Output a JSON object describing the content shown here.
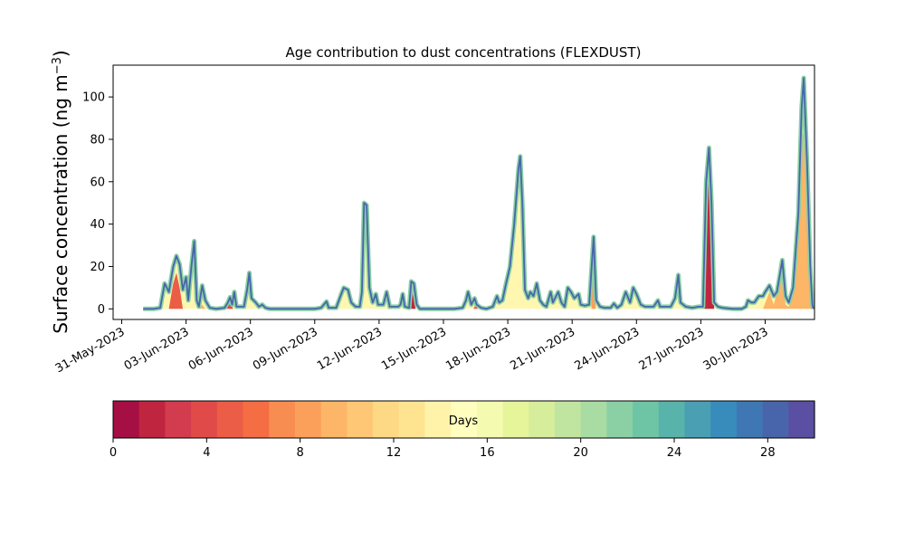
{
  "chart_data": {
    "type": "area",
    "title": "Age contribution to dust concentrations (FLEXDUST)",
    "ylabel_main": "Surface concentration (ng m",
    "ylabel_sup": "−3",
    "ylabel_close": ")",
    "xlabel": "",
    "ylim": [
      -5,
      115
    ],
    "y_ticks": [
      0,
      20,
      40,
      60,
      80,
      100
    ],
    "x_ticks": [
      {
        "day": 0,
        "label": "31-May-2023"
      },
      {
        "day": 3,
        "label": "03-Jun-2023"
      },
      {
        "day": 6,
        "label": "06-Jun-2023"
      },
      {
        "day": 9,
        "label": "09-Jun-2023"
      },
      {
        "day": 12,
        "label": "12-Jun-2023"
      },
      {
        "day": 15,
        "label": "15-Jun-2023"
      },
      {
        "day": 18,
        "label": "18-Jun-2023"
      },
      {
        "day": 21,
        "label": "21-Jun-2023"
      },
      {
        "day": 24,
        "label": "24-Jun-2023"
      },
      {
        "day": 27,
        "label": "27-Jun-2023"
      },
      {
        "day": 30,
        "label": "30-Jun-2023"
      }
    ],
    "xlim_days": [
      -0.4,
      32.3
    ],
    "total": [
      [
        1.0,
        0
      ],
      [
        1.5,
        0
      ],
      [
        1.8,
        0.5
      ],
      [
        2.0,
        12
      ],
      [
        2.2,
        8
      ],
      [
        2.4,
        20
      ],
      [
        2.55,
        25
      ],
      [
        2.7,
        21
      ],
      [
        2.85,
        9
      ],
      [
        3.0,
        15
      ],
      [
        3.1,
        4
      ],
      [
        3.25,
        20
      ],
      [
        3.38,
        32
      ],
      [
        3.5,
        4
      ],
      [
        3.6,
        1
      ],
      [
        3.75,
        11
      ],
      [
        3.9,
        4
      ],
      [
        4.1,
        0.5
      ],
      [
        4.4,
        0
      ],
      [
        4.8,
        0.5
      ],
      [
        4.95,
        3
      ],
      [
        5.05,
        5.5
      ],
      [
        5.15,
        2
      ],
      [
        5.25,
        8
      ],
      [
        5.35,
        1
      ],
      [
        5.7,
        1
      ],
      [
        5.85,
        9
      ],
      [
        5.95,
        17
      ],
      [
        6.05,
        5
      ],
      [
        6.25,
        3
      ],
      [
        6.4,
        1
      ],
      [
        6.55,
        2
      ],
      [
        6.7,
        0.5
      ],
      [
        6.9,
        0
      ],
      [
        9.0,
        0
      ],
      [
        9.3,
        0.5
      ],
      [
        9.55,
        3.5
      ],
      [
        9.65,
        0.5
      ],
      [
        10.0,
        0.5
      ],
      [
        10.2,
        6
      ],
      [
        10.35,
        10
      ],
      [
        10.55,
        9
      ],
      [
        10.7,
        3
      ],
      [
        10.9,
        1
      ],
      [
        11.1,
        1
      ],
      [
        11.2,
        8
      ],
      [
        11.3,
        50
      ],
      [
        11.42,
        49
      ],
      [
        11.55,
        10
      ],
      [
        11.7,
        3
      ],
      [
        11.85,
        7
      ],
      [
        11.95,
        2
      ],
      [
        12.2,
        2
      ],
      [
        12.35,
        8
      ],
      [
        12.5,
        1
      ],
      [
        12.7,
        1
      ],
      [
        12.9,
        1
      ],
      [
        13.0,
        2
      ],
      [
        13.1,
        7
      ],
      [
        13.2,
        1
      ],
      [
        13.4,
        0.5
      ],
      [
        13.5,
        13
      ],
      [
        13.62,
        12
      ],
      [
        13.75,
        2
      ],
      [
        13.9,
        0
      ],
      [
        15.0,
        0
      ],
      [
        15.5,
        0
      ],
      [
        15.9,
        0.5
      ],
      [
        16.05,
        4
      ],
      [
        16.15,
        8
      ],
      [
        16.3,
        2
      ],
      [
        16.45,
        5
      ],
      [
        16.55,
        2
      ],
      [
        16.75,
        0.5
      ],
      [
        17.0,
        0
      ],
      [
        17.3,
        1
      ],
      [
        17.5,
        6
      ],
      [
        17.6,
        3
      ],
      [
        17.75,
        4
      ],
      [
        17.9,
        11
      ],
      [
        18.1,
        20
      ],
      [
        18.3,
        40
      ],
      [
        18.5,
        66
      ],
      [
        18.58,
        72
      ],
      [
        18.68,
        50
      ],
      [
        18.8,
        9
      ],
      [
        18.95,
        5
      ],
      [
        19.05,
        8
      ],
      [
        19.2,
        6
      ],
      [
        19.35,
        12
      ],
      [
        19.5,
        4
      ],
      [
        19.65,
        2
      ],
      [
        19.8,
        1
      ],
      [
        20.0,
        8
      ],
      [
        20.1,
        3
      ],
      [
        20.2,
        5
      ],
      [
        20.35,
        8
      ],
      [
        20.5,
        3
      ],
      [
        20.65,
        1
      ],
      [
        20.8,
        10
      ],
      [
        20.95,
        8
      ],
      [
        21.1,
        5
      ],
      [
        21.3,
        7
      ],
      [
        21.4,
        2
      ],
      [
        21.6,
        1.5
      ],
      [
        21.8,
        2
      ],
      [
        22.0,
        34
      ],
      [
        22.12,
        4
      ],
      [
        22.3,
        1
      ],
      [
        22.5,
        0.5
      ],
      [
        22.8,
        0.5
      ],
      [
        22.95,
        2.5
      ],
      [
        23.1,
        0.5
      ],
      [
        23.3,
        2
      ],
      [
        23.5,
        8
      ],
      [
        23.7,
        3
      ],
      [
        23.85,
        10
      ],
      [
        24.0,
        7
      ],
      [
        24.2,
        2
      ],
      [
        24.4,
        1
      ],
      [
        24.6,
        1
      ],
      [
        24.8,
        1
      ],
      [
        25.0,
        4
      ],
      [
        25.1,
        1
      ],
      [
        25.3,
        1
      ],
      [
        25.6,
        1
      ],
      [
        25.8,
        5
      ],
      [
        25.95,
        16
      ],
      [
        26.05,
        3
      ],
      [
        26.3,
        1
      ],
      [
        26.6,
        0.5
      ],
      [
        26.9,
        1
      ],
      [
        27.1,
        1
      ],
      [
        27.25,
        60
      ],
      [
        27.38,
        76
      ],
      [
        27.5,
        50
      ],
      [
        27.62,
        3
      ],
      [
        27.8,
        1
      ],
      [
        28.0,
        0.5
      ],
      [
        28.5,
        0
      ],
      [
        28.9,
        0
      ],
      [
        29.1,
        1
      ],
      [
        29.2,
        4
      ],
      [
        29.35,
        3
      ],
      [
        29.5,
        3
      ],
      [
        29.7,
        6
      ],
      [
        29.9,
        6
      ],
      [
        30.0,
        8
      ],
      [
        30.2,
        11
      ],
      [
        30.4,
        6
      ],
      [
        30.55,
        8
      ],
      [
        30.7,
        17
      ],
      [
        30.8,
        23
      ],
      [
        30.95,
        6
      ],
      [
        31.1,
        3
      ],
      [
        31.3,
        10
      ],
      [
        31.55,
        45
      ],
      [
        31.7,
        95
      ],
      [
        31.8,
        109
      ],
      [
        31.95,
        70
      ],
      [
        32.1,
        20
      ],
      [
        32.2,
        2
      ],
      [
        32.25,
        0
      ]
    ],
    "colorbar": {
      "label": "Days",
      "range": [
        0,
        30
      ],
      "ticks": [
        0,
        4,
        8,
        12,
        16,
        20,
        24,
        28
      ],
      "colors": [
        "#a50f44",
        "#c0253f",
        "#d23c4e",
        "#e04b4a",
        "#eb5d46",
        "#f46d43",
        "#f88d52",
        "#fba05b",
        "#fdb567",
        "#fec776",
        "#fed985",
        "#fee491",
        "#fff3a9",
        "#fffebe",
        "#f4fab0",
        "#e6f59a",
        "#d6ee9b",
        "#c0e5a0",
        "#a9dca3",
        "#8ad0a4",
        "#6ec5a5",
        "#58b3aa",
        "#4aa0b2",
        "#378cbb",
        "#3f77b5",
        "#4865ab",
        "#5a4fa3"
      ]
    },
    "legend": "none"
  }
}
